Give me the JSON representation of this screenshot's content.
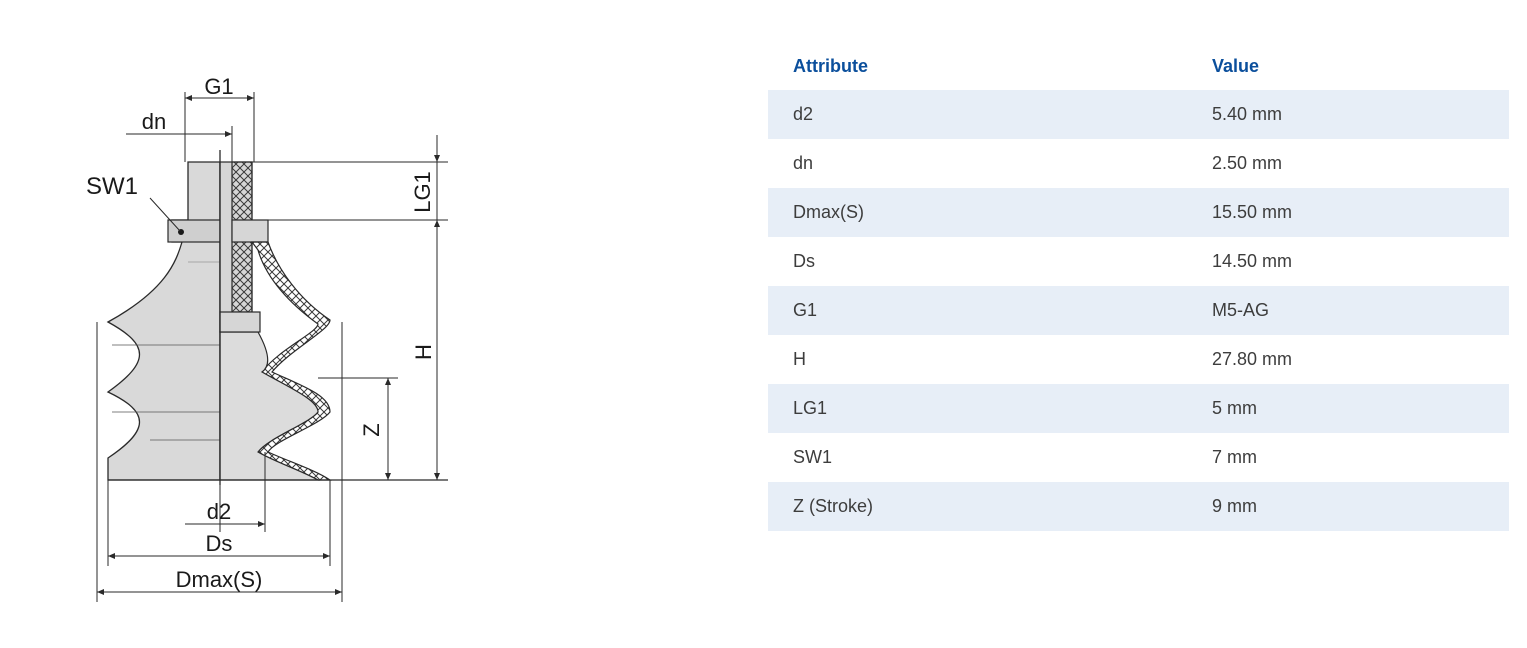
{
  "diagram": {
    "labels": {
      "G1": "G1",
      "dn": "dn",
      "SW1": "SW1",
      "LG1": "LG1",
      "H": "H",
      "Z": "Z",
      "d2": "d2",
      "Ds": "Ds",
      "Dmax": "Dmax(S)"
    },
    "colors": {
      "body": "#d9d9d9",
      "section": "#d2d2d2",
      "line": "#2a2a2a"
    }
  },
  "table": {
    "headers": {
      "attribute": "Attribute",
      "value": "Value"
    },
    "rows": [
      {
        "attribute": "d2",
        "value": "5.40 mm"
      },
      {
        "attribute": "dn",
        "value": "2.50 mm"
      },
      {
        "attribute": "Dmax(S)",
        "value": "15.50 mm"
      },
      {
        "attribute": "Ds",
        "value": "14.50 mm"
      },
      {
        "attribute": "G1",
        "value": "M5-AG"
      },
      {
        "attribute": "H",
        "value": "27.80 mm"
      },
      {
        "attribute": "LG1",
        "value": "5 mm"
      },
      {
        "attribute": "SW1",
        "value": "7 mm"
      },
      {
        "attribute": "Z (Stroke)",
        "value": "9 mm"
      }
    ],
    "colors": {
      "header": "#0b4f9c",
      "stripe": "#e7eef7",
      "text": "#3d3d3d"
    }
  }
}
